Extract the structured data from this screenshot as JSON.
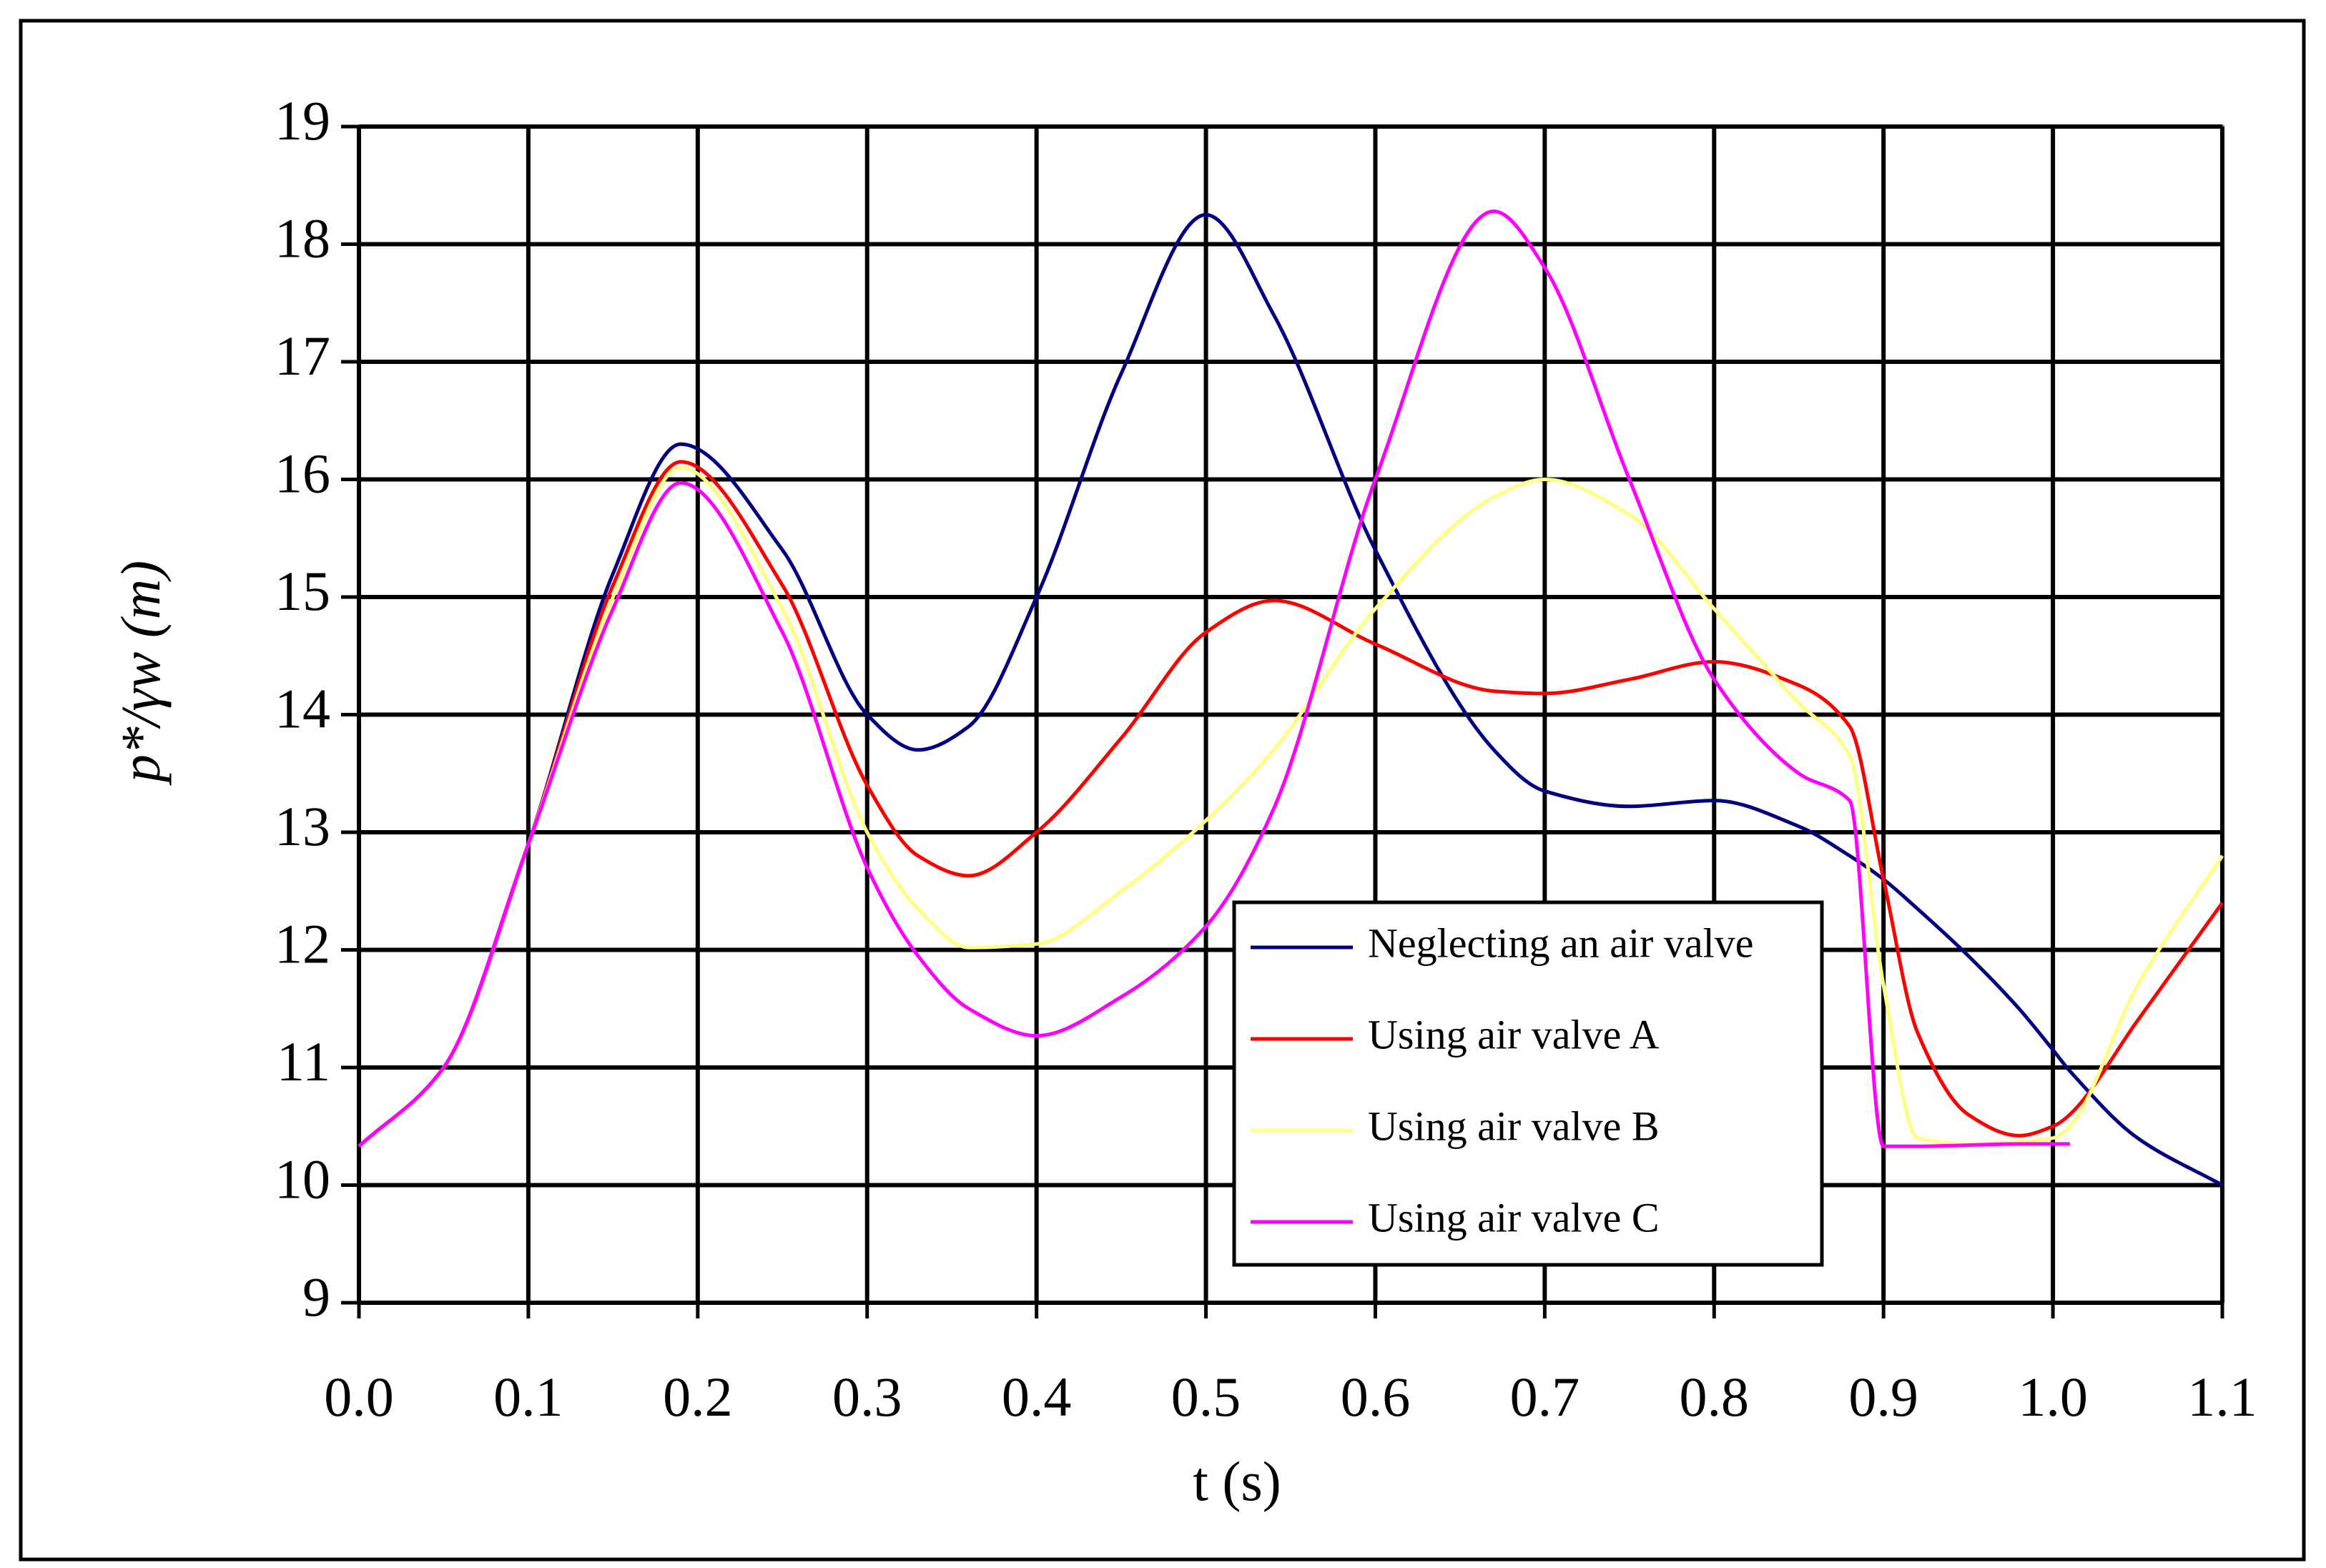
{
  "chart_data": {
    "type": "line",
    "x_label": "t (s)",
    "y_label": "p*/γw (m)",
    "x": [
      0,
      0.05,
      0.1,
      0.15,
      0.19,
      0.25,
      0.3,
      0.33,
      0.36,
      0.4,
      0.45,
      0.5,
      0.54,
      0.6,
      0.67,
      0.7,
      0.75,
      0.8,
      0.85,
      0.88,
      0.9,
      0.92,
      0.95,
      0.98,
      1.0,
      1.01,
      1.05,
      1.1
    ],
    "series": [
      {
        "name": "Neglecting an air valve",
        "color": "#000080",
        "values": [
          10.33,
          11.0,
          12.9,
          15.2,
          16.3,
          15.4,
          14.0,
          13.7,
          13.9,
          15.0,
          16.9,
          18.25,
          17.4,
          15.4,
          13.7,
          13.35,
          13.22,
          13.27,
          13.05,
          12.8,
          12.6,
          12.35,
          11.95,
          11.5,
          11.15,
          10.97,
          10.4,
          10.0
        ]
      },
      {
        "name": "Using air valve A",
        "color": "#ff0000",
        "values": [
          10.33,
          11.0,
          12.9,
          15.1,
          16.15,
          15.1,
          13.4,
          12.8,
          12.63,
          13.0,
          13.8,
          14.7,
          14.97,
          14.6,
          14.2,
          14.18,
          14.3,
          14.45,
          14.25,
          13.9,
          12.6,
          11.3,
          10.6,
          10.42,
          10.5,
          10.6,
          11.4,
          12.4
        ]
      },
      {
        "name": "Using air valve B",
        "color": "#ffff80",
        "values": [
          10.33,
          11.0,
          12.9,
          15.0,
          16.1,
          14.9,
          13.0,
          12.35,
          12.02,
          12.05,
          12.5,
          13.1,
          13.7,
          14.9,
          15.85,
          16.0,
          15.7,
          14.9,
          14.1,
          13.65,
          11.7,
          10.4,
          10.35,
          10.37,
          10.4,
          10.5,
          11.7,
          12.8
        ]
      },
      {
        "name": "Using air valve C",
        "color": "#ff00ff",
        "values": [
          10.33,
          11.0,
          12.9,
          14.9,
          15.97,
          14.7,
          12.7,
          11.95,
          11.5,
          11.27,
          11.6,
          12.2,
          13.2,
          16.0,
          18.28,
          17.8,
          16.0,
          14.3,
          13.5,
          13.27,
          10.33,
          10.33,
          10.34,
          10.35,
          10.35,
          10.35,
          null,
          null
        ]
      }
    ],
    "xlim": [
      0,
      1.1
    ],
    "ylim": [
      9,
      19
    ],
    "xticks": [
      {
        "value": 0,
        "label": "0.0"
      },
      0.1,
      0.2,
      0.3,
      0.4,
      0.5,
      0.6,
      0.7,
      0.8,
      0.9,
      {
        "value": 1,
        "label": "1.0"
      },
      1.1
    ],
    "yticks": [
      9,
      10,
      11,
      12,
      13,
      14,
      15,
      16,
      17,
      18,
      19
    ],
    "grid": true,
    "legend": "lower right"
  }
}
